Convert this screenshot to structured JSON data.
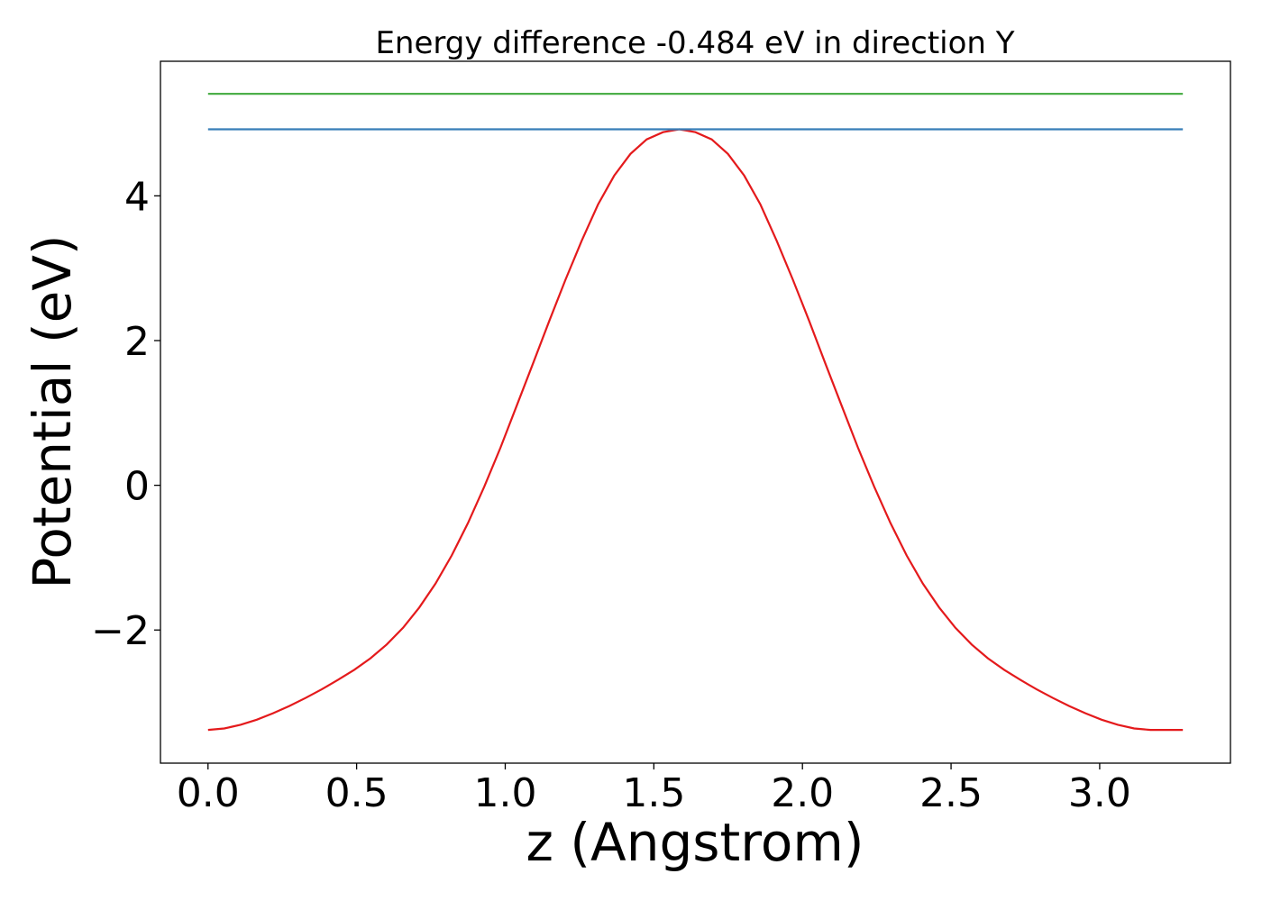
{
  "chart_data": {
    "type": "line",
    "title": "Energy difference -0.484 eV in direction Y",
    "xlabel": "z (Angstrom)",
    "ylabel": "Potential (eV)",
    "xlim": [
      -0.16,
      3.44
    ],
    "ylim": [
      -3.84,
      5.86
    ],
    "xticks": [
      0.0,
      0.5,
      1.0,
      1.5,
      2.0,
      2.5,
      3.0
    ],
    "xtick_labels": [
      "0.0",
      "0.5",
      "1.0",
      "1.5",
      "2.0",
      "2.5",
      "3.0"
    ],
    "yticks": [
      -2,
      0,
      2,
      4
    ],
    "ytick_labels": [
      "−2",
      "0",
      "2",
      "4"
    ],
    "grid": false,
    "series": [
      {
        "color": "#e41a1c",
        "x": [
          0.0,
          0.0547,
          0.1093,
          0.164,
          0.2187,
          0.2733,
          0.328,
          0.3827,
          0.4373,
          0.492,
          0.5467,
          0.6013,
          0.656,
          0.7107,
          0.7653,
          0.82,
          0.8747,
          0.9293,
          0.984,
          1.0387,
          1.0933,
          1.148,
          1.2027,
          1.2573,
          1.312,
          1.3667,
          1.4213,
          1.476,
          1.5307,
          1.5853,
          1.64,
          1.6947,
          1.7493,
          1.804,
          1.8587,
          1.9133,
          1.968,
          2.0227,
          2.0773,
          2.132,
          2.1867,
          2.2413,
          2.296,
          2.3507,
          2.4053,
          2.46,
          2.5147,
          2.5693,
          2.624,
          2.6787,
          2.7333,
          2.788,
          2.8427,
          2.8973,
          2.952,
          3.0067,
          3.0613,
          3.116,
          3.1707,
          3.2253,
          3.28
        ],
        "y": [
          -3.38,
          -3.36,
          -3.31,
          -3.24,
          -3.15,
          -3.05,
          -2.94,
          -2.82,
          -2.69,
          -2.55,
          -2.39,
          -2.2,
          -1.97,
          -1.69,
          -1.36,
          -0.97,
          -0.52,
          -0.02,
          0.52,
          1.1,
          1.68,
          2.27,
          2.84,
          3.38,
          3.88,
          4.28,
          4.58,
          4.78,
          4.88,
          4.92,
          4.88,
          4.78,
          4.58,
          4.28,
          3.88,
          3.38,
          2.84,
          2.27,
          1.68,
          1.1,
          0.52,
          -0.02,
          -0.52,
          -0.97,
          -1.36,
          -1.69,
          -1.97,
          -2.2,
          -2.39,
          -2.55,
          -2.69,
          -2.82,
          -2.94,
          -3.05,
          -3.15,
          -3.24,
          -3.31,
          -3.36,
          -3.38,
          -3.38,
          -3.38
        ]
      },
      {
        "color": "#377eb8",
        "x": [
          0.0,
          3.28
        ],
        "y": [
          4.92,
          4.92
        ]
      },
      {
        "color": "#4daf4a",
        "x": [
          0.0,
          3.28
        ],
        "y": [
          5.41,
          5.41
        ]
      }
    ]
  }
}
